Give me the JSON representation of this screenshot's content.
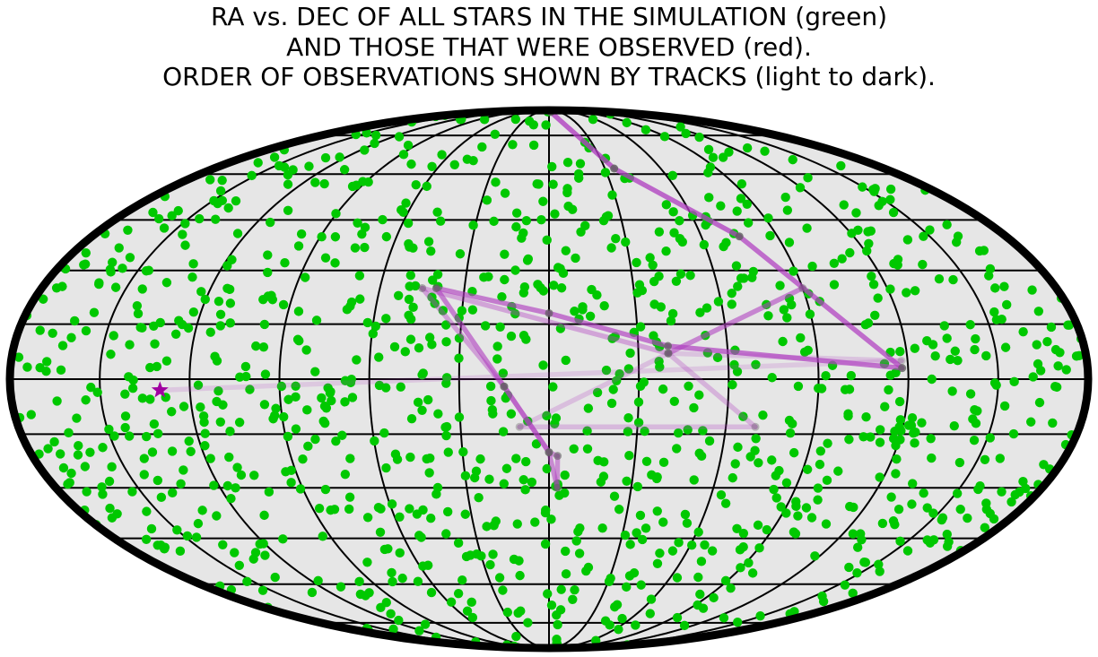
{
  "chart_data": {
    "type": "scatter",
    "projection": "mollweide",
    "title_lines": [
      "RA vs. DEC OF ALL STARS IN THE SIMULATION (green)",
      "AND THOSE THAT WERE OBSERVED (red).",
      "ORDER OF OBSERVATIONS SHOWN BY TRACKS (light to dark)."
    ],
    "grid": true,
    "grid_meridians_deg": [
      -150,
      -120,
      -90,
      -60,
      -30,
      0,
      30,
      60,
      90,
      120,
      150
    ],
    "grid_parallels_deg": [
      -75,
      -60,
      -45,
      -30,
      -15,
      0,
      15,
      30,
      45,
      60,
      75
    ],
    "colors": {
      "background": "#e6e6e6",
      "border": "#000000",
      "grid": "#000000",
      "stars": "#00c800",
      "track": "#b040c0",
      "track_nodes": "#606060",
      "start_marker": "#a000a0"
    },
    "stars_sample_seed": 7,
    "start_marker_lonlat": [
      -130,
      -3
    ],
    "track": [
      [
        -130,
        -3
      ],
      [
        118,
        5
      ],
      [
        40,
        7
      ],
      [
        -10,
        -13
      ],
      [
        70,
        -13
      ],
      [
        40,
        7
      ],
      [
        90,
        25
      ],
      [
        40,
        7
      ],
      [
        -45,
        25
      ],
      [
        -15,
        -2
      ],
      [
        0,
        -20
      ],
      [
        3,
        -21
      ],
      [
        3,
        -30
      ],
      [
        0,
        -20
      ],
      [
        -15,
        -2
      ],
      [
        -40,
        25
      ],
      [
        0,
        18
      ],
      [
        40,
        9
      ],
      [
        118,
        3
      ],
      [
        75,
        40
      ],
      [
        35,
        62
      ],
      [
        5,
        88
      ]
    ]
  }
}
